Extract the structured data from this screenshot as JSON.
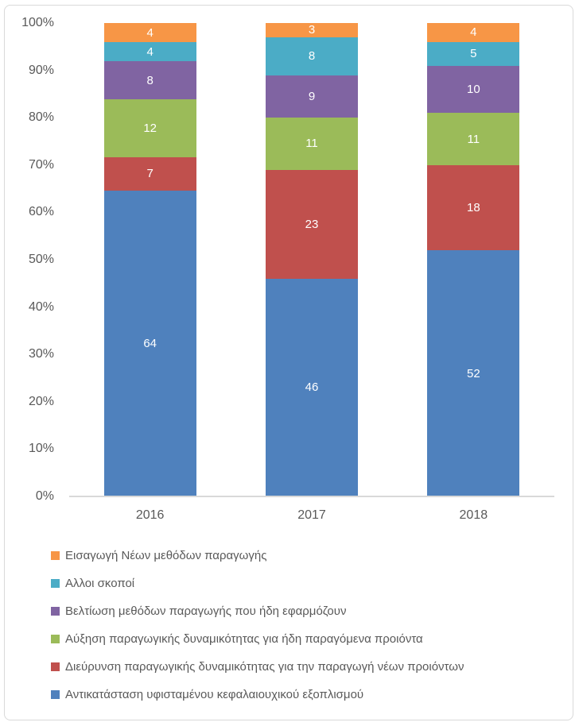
{
  "colors": {
    "background": "#ffffff",
    "border": "#D9D9D9",
    "axis_line": "#D9D9D9",
    "axis_text": "#595959",
    "legend_text": "#595959",
    "value_label_text": "#ffffff",
    "series_blue": "#4F81BD",
    "series_red": "#C0504D",
    "series_green": "#9BBB59",
    "series_purple": "#8064A2",
    "series_cyan": "#4BACC6",
    "series_orange": "#F79646"
  },
  "chart_data": {
    "type": "bar",
    "subtype": "stacked-100-column",
    "title": "",
    "xlabel": "",
    "ylabel": "",
    "categories": [
      "2016",
      "2017",
      "2018"
    ],
    "series": [
      {
        "name": "Αντικατάσταση υφισταμένου κεφαλαιουχικού εξοπλισμού",
        "color": "#4F81BD",
        "values": [
          64,
          46,
          52
        ]
      },
      {
        "name": "Διεύρυνση παραγωγικής δυναμικότητας για την παραγωγή νέων προιόντων",
        "color": "#C0504D",
        "values": [
          7,
          23,
          18
        ]
      },
      {
        "name": "Αύξηση παραγωγικής δυναμικότητας για ήδη παραγόμενα προιόντα",
        "color": "#9BBB59",
        "values": [
          12,
          11,
          11
        ]
      },
      {
        "name": "Βελτίωση μεθόδων παραγωγής που ήδη εφαρμόζουν",
        "color": "#8064A2",
        "values": [
          8,
          9,
          10
        ]
      },
      {
        "name": "Αλλοι σκοποί",
        "color": "#4BACC6",
        "values": [
          4,
          8,
          5
        ]
      },
      {
        "name": "Εισαγωγή Νέων μεθόδων παραγωγής",
        "color": "#F79646",
        "values": [
          4,
          3,
          4
        ]
      }
    ],
    "stack_order": "bottom-to-top",
    "value_labels_shown": true,
    "y_ticks": [
      "0%",
      "10%",
      "20%",
      "30%",
      "40%",
      "50%",
      "60%",
      "70%",
      "80%",
      "90%",
      "100%"
    ],
    "ylim": [
      0,
      100
    ],
    "grid": false,
    "legend_position": "bottom-left",
    "legend_order_series_indices": [
      5,
      4,
      3,
      2,
      1,
      0
    ]
  }
}
